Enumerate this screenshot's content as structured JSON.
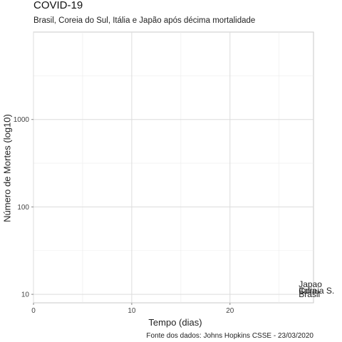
{
  "chart_data": {
    "type": "line",
    "title": "COVID-19",
    "subtitle": "Brasil, Coreia do Sul, Itália e Japão após décima mortalidade",
    "xlabel": "Tempo (dias)",
    "ylabel": "Número de Mortes (log10)",
    "caption": "Fonte dos dados: Johns Hopkins CSSE - 23/03/2020",
    "xlim": [
      0,
      28.5
    ],
    "ylim": [
      8,
      10000
    ],
    "yscale": "log10",
    "x_ticks": [
      0,
      10,
      20
    ],
    "y_ticks": [
      10,
      100,
      1000
    ],
    "grid": true,
    "series": [
      {
        "name": "Japão",
        "label": "Japao",
        "x": [
          27.5
        ],
        "y": [
          13
        ]
      },
      {
        "name": "Coreia do Sul",
        "label": "Coreia S.",
        "x": [
          27.5
        ],
        "y": [
          11
        ]
      },
      {
        "name": "Itália",
        "label": "Italia",
        "x": [
          27.5
        ],
        "y": [
          11
        ]
      },
      {
        "name": "Brasil",
        "label": "Brasil",
        "x": [
          27.5
        ],
        "y": [
          10
        ]
      }
    ]
  }
}
